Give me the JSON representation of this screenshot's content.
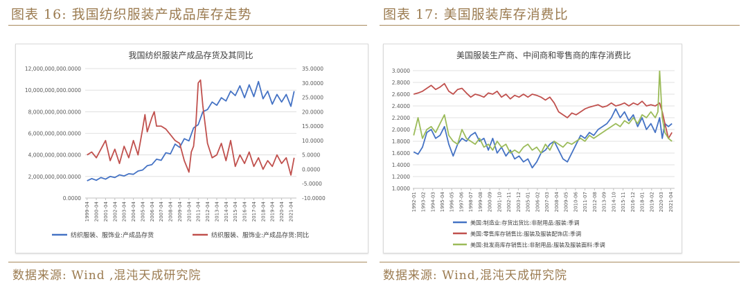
{
  "figure_left": {
    "label": "图表 16:",
    "title": "我国纺织服装产成品库存走势",
    "source": "数据来源: Wind ,混沌天成研究院"
  },
  "figure_right": {
    "label": "图表 17:",
    "title": "美国服装库存消费比",
    "source": "数据来源: Wind,混沌天成研究院"
  },
  "colors": {
    "blue": "#4472c4",
    "red": "#c0504d",
    "green": "#9bbb59",
    "caption": "#9b7b50"
  },
  "chart_data": [
    {
      "type": "line",
      "title": "我国纺织服装产成品存货及其同比",
      "yLeft": {
        "min": 0,
        "max": 12000000000,
        "ticks": [
          "0.0000",
          "2,000,000,000.0000",
          "4,000,000,000.0000",
          "6,000,000,000.0000",
          "8,000,000,000.0000",
          "10,000,000,000.0000",
          "12,000,000,000.0000"
        ]
      },
      "yRight": {
        "min": -10,
        "max": 35,
        "ticks": [
          "-10.0000",
          "-5.0000",
          "0.0000",
          "5.0000",
          "10.0000",
          "15.0000",
          "20.0000",
          "25.0000",
          "30.0000",
          "35.0000"
        ]
      },
      "x_ticks": [
        "1999-04",
        "2000-04",
        "2001-04",
        "2002-04",
        "2003-04",
        "2004-04",
        "2005-04",
        "2006-04",
        "2007-04",
        "2008-04",
        "2009-04",
        "2010-04",
        "2011-04",
        "2012-04",
        "2013-04",
        "2014-04",
        "2015-04",
        "2016-04",
        "2017-04",
        "2018-04",
        "2019-04",
        "2020-04",
        "2021-04"
      ],
      "series": [
        {
          "name": "纺织服装、服饰业:产成品存货",
          "axis": "left",
          "color": "#4472c4",
          "x": [
            1999.25,
            1999.75,
            2000.25,
            2000.75,
            2001.25,
            2001.75,
            2002.25,
            2002.75,
            2003.25,
            2003.75,
            2004.25,
            2004.75,
            2005.25,
            2005.75,
            2006.25,
            2006.75,
            2007.25,
            2007.75,
            2008.25,
            2008.75,
            2009.25,
            2009.75,
            2010.25,
            2010.75,
            2011.25,
            2011.75,
            2012.25,
            2012.75,
            2013.25,
            2013.75,
            2014.25,
            2014.75,
            2015.25,
            2015.75,
            2016.25,
            2016.75,
            2017.25,
            2017.75,
            2018.25,
            2018.75,
            2019.25,
            2019.75,
            2020.25,
            2020.75,
            2021.25,
            2021.6
          ],
          "y": [
            1600000000,
            1800000000,
            1650000000,
            1900000000,
            1750000000,
            2000000000,
            1900000000,
            2150000000,
            2050000000,
            2250000000,
            2200000000,
            2500000000,
            2600000000,
            3000000000,
            3100000000,
            3600000000,
            3500000000,
            4200000000,
            4100000000,
            5000000000,
            4700000000,
            5500000000,
            5300000000,
            6500000000,
            6800000000,
            8000000000,
            8200000000,
            8900000000,
            8600000000,
            9300000000,
            9000000000,
            9900000000,
            9500000000,
            10400000000,
            9300000000,
            10500000000,
            9400000000,
            10800000000,
            9200000000,
            9900000000,
            8700000000,
            9600000000,
            8900000000,
            9600000000,
            8500000000,
            9900000000
          ]
        },
        {
          "name": "纺织服装、服饰业:产成品存货:同比",
          "axis": "right",
          "color": "#c0504d",
          "x": [
            1999.25,
            1999.75,
            2000.25,
            2000.75,
            2001.25,
            2001.75,
            2002.25,
            2002.75,
            2003.25,
            2003.75,
            2004.25,
            2004.75,
            2005.25,
            2005.5,
            2005.75,
            2006.25,
            2006.5,
            2006.75,
            2007.25,
            2007.75,
            2008.25,
            2008.75,
            2009.25,
            2009.75,
            2010.25,
            2010.5,
            2010.75,
            2011.0,
            2011.25,
            2011.5,
            2011.75,
            2012.25,
            2012.75,
            2013.25,
            2013.75,
            2014.25,
            2014.75,
            2015.25,
            2015.75,
            2016.25,
            2016.75,
            2017.25,
            2017.75,
            2018.25,
            2018.75,
            2019.25,
            2019.75,
            2020.25,
            2020.75,
            2021.25,
            2021.6
          ],
          "y": [
            5,
            6,
            4,
            7,
            10,
            3,
            7,
            2,
            8,
            4,
            10,
            5,
            14,
            19,
            13,
            18,
            20,
            15,
            15,
            14,
            12,
            10,
            9,
            3,
            -1,
            6,
            8,
            16,
            30,
            31,
            22,
            9,
            4,
            5,
            9,
            3,
            10,
            1,
            5,
            2,
            6,
            1,
            4,
            0,
            3,
            1,
            5,
            2,
            4,
            -2,
            4
          ]
        }
      ],
      "legend_position": "bottom",
      "grid": true
    },
    {
      "type": "line",
      "title": "美国服装生产商、中间商和零售商的库存消费比",
      "y": {
        "min": 1.0,
        "max": 3.0,
        "ticks": [
          "1.0000",
          "1.2000",
          "1.4000",
          "1.6000",
          "1.8000",
          "2.0000",
          "2.2000",
          "2.4000",
          "2.6000",
          "2.8000",
          "3.0000"
        ]
      },
      "x_ticks": [
        "1992-01",
        "1993-02",
        "1994-03",
        "1995-04",
        "1996-05",
        "1997-06",
        "1998-07",
        "1999-08",
        "2000-09",
        "2001-10",
        "2002-11",
        "2003-12",
        "2005-01",
        "2006-02",
        "2007-03",
        "2008-04",
        "2009-05",
        "2010-06",
        "2011-07",
        "2012-08",
        "2013-09",
        "2014-10",
        "2015-11",
        "2016-12",
        "2018-01",
        "2019-02",
        "2020-03",
        "2021-04"
      ],
      "series": [
        {
          "name": "美国:制造业:存货出货比:非耐用品:服装:季调",
          "color": "#4472c4",
          "x": [
            1992.0,
            1992.5,
            1993.0,
            1993.5,
            1994.0,
            1994.5,
            1995.0,
            1995.5,
            1996.0,
            1996.5,
            1997.0,
            1997.5,
            1998.0,
            1998.5,
            1999.0,
            1999.5,
            2000.0,
            2000.5,
            2001.0,
            2001.5,
            2002.0,
            2002.5,
            2003.0,
            2003.5,
            2004.0,
            2004.5,
            2005.0,
            2005.5,
            2006.0,
            2006.5,
            2007.0,
            2007.5,
            2008.0,
            2008.5,
            2009.0,
            2009.5,
            2010.0,
            2010.5,
            2011.0,
            2011.5,
            2012.0,
            2012.5,
            2013.0,
            2013.5,
            2014.0,
            2014.5,
            2015.0,
            2015.5,
            2016.0,
            2016.5,
            2017.0,
            2017.5,
            2018.0,
            2018.5,
            2019.0,
            2019.5,
            2020.0,
            2020.3,
            2020.6,
            2021.0,
            2021.4
          ],
          "y": [
            1.62,
            1.58,
            1.7,
            1.95,
            2.0,
            1.85,
            1.9,
            2.05,
            1.75,
            1.55,
            1.75,
            1.85,
            1.8,
            1.9,
            1.95,
            1.8,
            1.85,
            1.65,
            1.85,
            1.6,
            1.7,
            1.55,
            1.65,
            1.5,
            1.55,
            1.45,
            1.5,
            1.35,
            1.45,
            1.6,
            1.65,
            1.75,
            1.8,
            1.65,
            1.5,
            1.45,
            1.6,
            1.75,
            1.9,
            1.85,
            1.95,
            1.9,
            2.0,
            2.05,
            2.1,
            2.2,
            2.35,
            2.2,
            2.3,
            2.15,
            2.25,
            2.05,
            2.2,
            2.0,
            2.1,
            1.95,
            2.2,
            1.85,
            2.1,
            2.05,
            2.1
          ]
        },
        {
          "name": "美国:零售库存销售比:服装及服装配饰店:季调",
          "color": "#c0504d",
          "x": [
            1992.0,
            1992.5,
            1993.0,
            1993.5,
            1994.0,
            1994.5,
            1995.0,
            1995.5,
            1996.0,
            1996.5,
            1997.0,
            1997.5,
            1998.0,
            1998.5,
            1999.0,
            1999.5,
            2000.0,
            2000.5,
            2001.0,
            2001.5,
            2002.0,
            2002.5,
            2003.0,
            2003.5,
            2004.0,
            2004.5,
            2005.0,
            2005.5,
            2006.0,
            2006.5,
            2007.0,
            2007.5,
            2008.0,
            2008.5,
            2009.0,
            2009.5,
            2010.0,
            2010.5,
            2011.0,
            2011.5,
            2012.0,
            2012.5,
            2013.0,
            2013.5,
            2014.0,
            2014.5,
            2015.0,
            2015.5,
            2016.0,
            2016.5,
            2017.0,
            2017.5,
            2018.0,
            2018.5,
            2019.0,
            2019.5,
            2020.0,
            2020.3,
            2020.6,
            2021.0,
            2021.4
          ],
          "y": [
            2.6,
            2.62,
            2.65,
            2.7,
            2.75,
            2.68,
            2.72,
            2.78,
            2.65,
            2.6,
            2.68,
            2.7,
            2.62,
            2.55,
            2.6,
            2.58,
            2.55,
            2.62,
            2.6,
            2.65,
            2.55,
            2.6,
            2.52,
            2.58,
            2.55,
            2.6,
            2.55,
            2.6,
            2.58,
            2.55,
            2.5,
            2.55,
            2.45,
            2.3,
            2.25,
            2.2,
            2.28,
            2.25,
            2.3,
            2.35,
            2.38,
            2.4,
            2.42,
            2.38,
            2.4,
            2.45,
            2.4,
            2.42,
            2.45,
            2.4,
            2.45,
            2.42,
            2.48,
            2.4,
            2.42,
            2.4,
            2.45,
            2.3,
            2.1,
            1.85,
            1.95
          ]
        },
        {
          "name": "美国:批发商库存销售比:非耐用品:服装及服装面料:季调",
          "color": "#9bbb59",
          "x": [
            1992.0,
            1992.5,
            1993.0,
            1993.5,
            1994.0,
            1994.5,
            1995.0,
            1995.5,
            1996.0,
            1996.5,
            1997.0,
            1997.5,
            1998.0,
            1998.5,
            1999.0,
            1999.5,
            2000.0,
            2000.5,
            2001.0,
            2001.5,
            2002.0,
            2002.5,
            2003.0,
            2003.5,
            2004.0,
            2004.5,
            2005.0,
            2005.5,
            2006.0,
            2006.5,
            2007.0,
            2007.5,
            2008.0,
            2008.5,
            2009.0,
            2009.5,
            2010.0,
            2010.5,
            2011.0,
            2011.5,
            2012.0,
            2012.5,
            2013.0,
            2013.5,
            2014.0,
            2014.5,
            2015.0,
            2015.5,
            2016.0,
            2016.5,
            2017.0,
            2017.5,
            2018.0,
            2018.5,
            2019.0,
            2019.5,
            2019.8,
            2020.0,
            2020.3,
            2020.6,
            2021.0,
            2021.4
          ],
          "y": [
            1.9,
            2.2,
            1.85,
            2.0,
            2.05,
            1.95,
            2.1,
            2.25,
            1.9,
            1.8,
            1.75,
            2.0,
            1.85,
            1.8,
            1.75,
            1.85,
            1.7,
            1.75,
            1.65,
            1.8,
            1.7,
            1.75,
            1.6,
            1.65,
            1.6,
            1.7,
            1.75,
            1.65,
            1.7,
            1.6,
            1.75,
            1.65,
            1.8,
            1.75,
            1.7,
            1.78,
            1.75,
            1.8,
            1.85,
            1.8,
            1.9,
            1.85,
            1.9,
            1.95,
            2.0,
            2.05,
            2.1,
            2.05,
            2.15,
            2.1,
            2.2,
            2.1,
            2.25,
            2.2,
            2.3,
            2.2,
            2.3,
            3.0,
            2.2,
            1.95,
            1.85,
            1.8
          ]
        }
      ],
      "legend_position": "bottom",
      "grid": true
    }
  ]
}
